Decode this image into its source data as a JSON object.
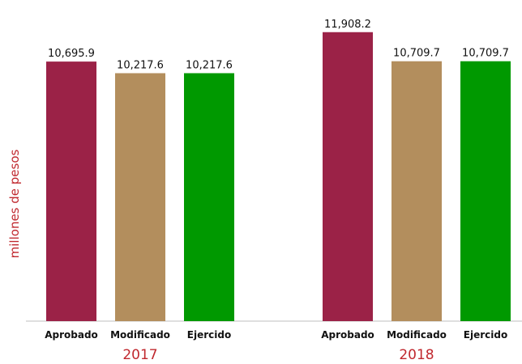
{
  "chart_data": {
    "type": "bar",
    "title": "",
    "ylabel": "millones de pesos",
    "xlabel": "",
    "ylim": [
      0,
      12100
    ],
    "grid": false,
    "legend": "none",
    "groups": [
      {
        "label": "2017",
        "categories": [
          "Aprobado",
          "Modificado",
          "Ejercido"
        ],
        "values": [
          10695.9,
          10217.6,
          10217.6
        ],
        "value_labels": [
          "10,695.9",
          "10,217.6",
          "10,217.6"
        ]
      },
      {
        "label": "2018",
        "categories": [
          "Aprobado",
          "Modificado",
          "Ejercido"
        ],
        "values": [
          11908.2,
          10709.7,
          10709.7
        ],
        "value_labels": [
          "11,908.2",
          "10,709.7",
          "10,709.7"
        ]
      }
    ],
    "colors": {
      "Aprobado": "#9b2247",
      "Modificado": "#b38e5d",
      "Ejercido": "#009900"
    }
  }
}
